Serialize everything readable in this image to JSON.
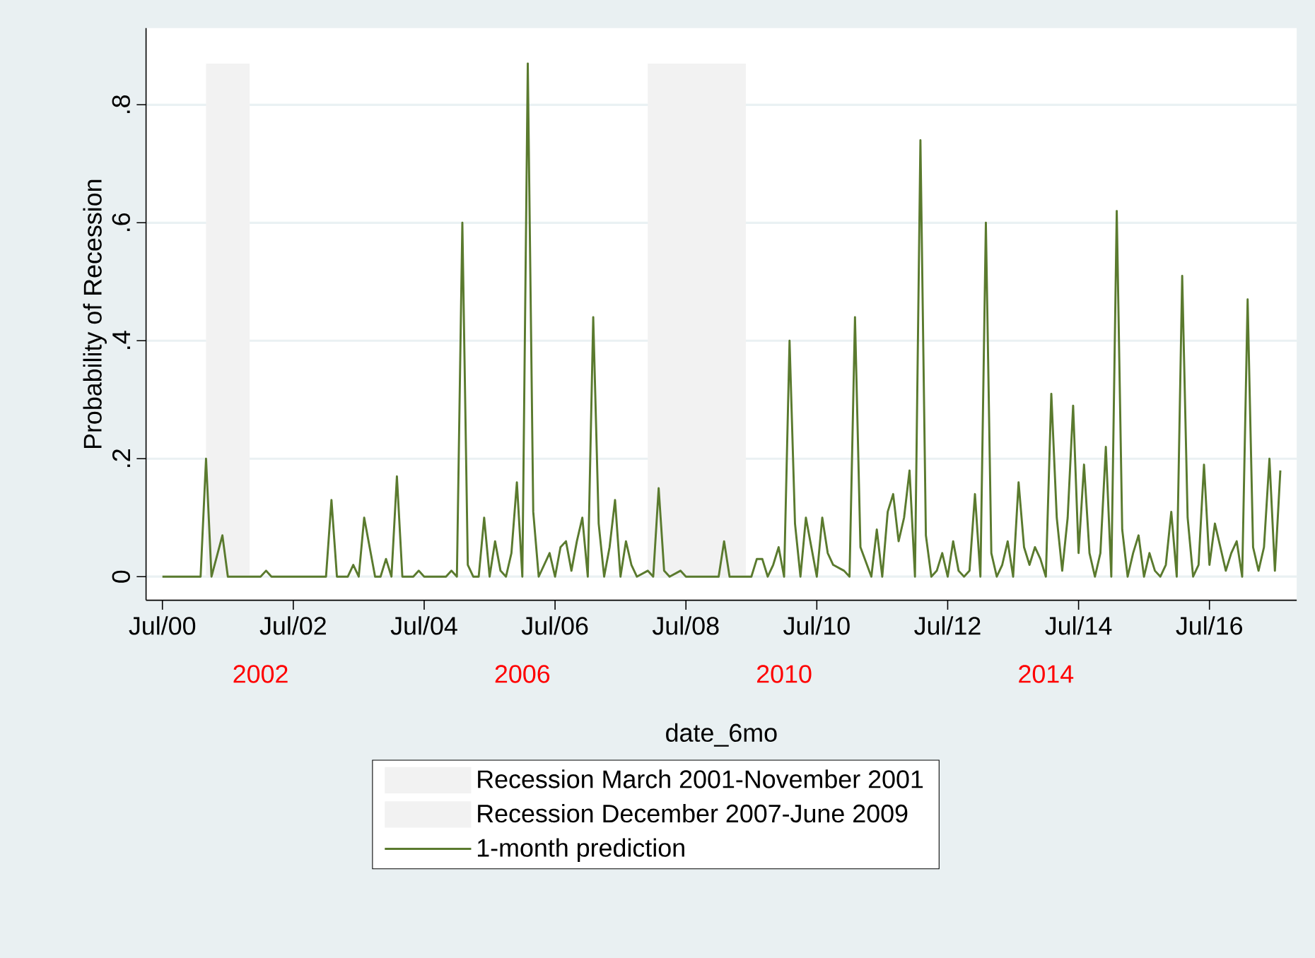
{
  "chart_data": {
    "type": "line",
    "xlabel": "date_6mo",
    "ylabel": "Probability of Recession",
    "x": [
      "2000-07",
      "2001-02",
      "2001-03",
      "2001-04",
      "2001-06",
      "2001-07",
      "2001-09",
      "2002-01",
      "2002-02",
      "2002-03",
      "2003-01",
      "2003-02",
      "2003-03",
      "2003-05",
      "2003-06",
      "2003-07",
      "2003-08",
      "2003-10",
      "2003-11",
      "2003-12",
      "2004-01",
      "2004-02",
      "2004-03",
      "2004-05",
      "2004-06",
      "2004-07",
      "2004-11",
      "2004-12",
      "2005-01",
      "2005-02",
      "2005-03",
      "2005-04",
      "2005-05",
      "2005-06",
      "2005-07",
      "2005-08",
      "2005-09",
      "2005-10",
      "2005-11",
      "2005-12",
      "2006-01",
      "2006-02",
      "2006-03",
      "2006-04",
      "2006-06",
      "2006-07",
      "2006-08",
      "2006-09",
      "2006-10",
      "2006-11",
      "2006-12",
      "2007-01",
      "2007-02",
      "2007-03",
      "2007-04",
      "2007-05",
      "2007-06",
      "2007-07",
      "2007-08",
      "2007-09",
      "2007-10",
      "2007-12",
      "2008-01",
      "2008-02",
      "2008-03",
      "2008-04",
      "2008-06",
      "2008-07",
      "2009-01",
      "2009-02",
      "2009-03",
      "2009-07",
      "2009-08",
      "2009-09",
      "2009-10",
      "2009-11",
      "2009-12",
      "2010-01",
      "2010-02",
      "2010-03",
      "2010-04",
      "2010-05",
      "2010-06",
      "2010-07",
      "2010-08",
      "2010-09",
      "2010-10",
      "2010-12",
      "2011-01",
      "2011-02",
      "2011-03",
      "2011-05",
      "2011-06",
      "2011-07",
      "2011-08",
      "2011-09",
      "2011-10",
      "2011-11",
      "2011-12",
      "2012-01",
      "2012-02",
      "2012-03",
      "2012-04",
      "2012-05",
      "2012-06",
      "2012-07",
      "2012-08",
      "2012-09",
      "2012-10",
      "2012-11",
      "2012-12",
      "2013-01",
      "2013-02",
      "2013-03",
      "2013-04",
      "2013-05",
      "2013-06",
      "2013-07",
      "2013-08",
      "2013-09",
      "2013-10",
      "2013-11",
      "2013-12",
      "2014-01",
      "2014-02",
      "2014-03",
      "2014-04",
      "2014-05",
      "2014-06",
      "2014-07",
      "2014-08",
      "2014-09",
      "2014-10",
      "2014-11",
      "2014-12",
      "2015-01",
      "2015-02",
      "2015-03",
      "2015-04",
      "2015-05",
      "2015-06",
      "2015-07",
      "2015-08",
      "2015-09",
      "2015-10",
      "2015-11",
      "2015-12",
      "2016-01",
      "2016-02",
      "2016-03",
      "2016-04",
      "2016-05",
      "2016-06",
      "2016-07",
      "2016-08",
      "2016-09",
      "2016-10",
      "2016-11",
      "2016-12",
      "2017-01",
      "2017-02",
      "2017-03",
      "2017-04",
      "2017-05",
      "2017-06",
      "2017-07",
      "2017-08"
    ],
    "series": [
      {
        "name": "1-month prediction",
        "color": "#5a7a2e",
        "values": [
          0,
          0,
          0.2,
          0,
          0.07,
          0,
          0,
          0,
          0.01,
          0,
          0,
          0.13,
          0,
          0,
          0.02,
          0,
          0.1,
          0,
          0,
          0.03,
          0,
          0.17,
          0,
          0,
          0.01,
          0,
          0,
          0.01,
          0,
          0.6,
          0.02,
          0,
          0,
          0.1,
          0,
          0.06,
          0.01,
          0,
          0.04,
          0.16,
          0,
          0.87,
          0.11,
          0,
          0.04,
          0,
          0.05,
          0.06,
          0.01,
          0.06,
          0.1,
          0,
          0.44,
          0.09,
          0,
          0.05,
          0.13,
          0,
          0.06,
          0.02,
          0,
          0.01,
          0,
          0.15,
          0.01,
          0,
          0.01,
          0,
          0,
          0.06,
          0,
          0,
          0.03,
          0.03,
          0,
          0.02,
          0.05,
          0,
          0.4,
          0.09,
          0,
          0.1,
          0.05,
          0,
          0.1,
          0.04,
          0.02,
          0.01,
          0,
          0.44,
          0.05,
          0,
          0.08,
          0,
          0.11,
          0.14,
          0.06,
          0.1,
          0.18,
          0,
          0.74,
          0.07,
          0,
          0.01,
          0.04,
          0,
          0.06,
          0.01,
          0,
          0.01,
          0.14,
          0,
          0.6,
          0.04,
          0,
          0.02,
          0.06,
          0,
          0.16,
          0.05,
          0.02,
          0.05,
          0.03,
          0,
          0.31,
          0.1,
          0.01,
          0.1,
          0.29,
          0.04,
          0.19,
          0.04,
          0,
          0.04,
          0.22,
          0,
          0.62,
          0.08,
          0,
          0.04,
          0.07,
          0,
          0.04,
          0.01,
          0,
          0.02,
          0.11,
          0,
          0.51,
          0.1,
          0,
          0.02,
          0.19,
          0.02,
          0.09,
          0.05,
          0.01,
          0.04,
          0.06,
          0,
          0.47,
          0.05,
          0.01,
          0.05,
          0.2,
          0.01,
          0.18
        ]
      }
    ],
    "bands": [
      {
        "axis": "x",
        "from": "2001-03",
        "to": "2001-11",
        "label": "Recession March 2001-November 2001",
        "color": "#f2f2f2"
      },
      {
        "axis": "x",
        "from": "2007-12",
        "to": "2009-06",
        "label": "Recession December 2007-June 2009",
        "color": "#f2f2f2"
      }
    ],
    "x2lim": [
      "2000-04",
      "2017-11"
    ],
    "x2ticks": [
      {
        "value": "2002-01",
        "label": "2002"
      },
      {
        "value": "2006-01",
        "label": "2006"
      },
      {
        "value": "2010-01",
        "label": "2010"
      },
      {
        "value": "2014-01",
        "label": "2014"
      }
    ],
    "xlim": [
      "2000-04",
      "2017-11"
    ],
    "xticks": [
      {
        "value": "2000-07",
        "label": "Jul/00"
      },
      {
        "value": "2002-07",
        "label": "Jul/02"
      },
      {
        "value": "2004-07",
        "label": "Jul/04"
      },
      {
        "value": "2006-07",
        "label": "Jul/06"
      },
      {
        "value": "2008-07",
        "label": "Jul/08"
      },
      {
        "value": "2010-07",
        "label": "Jul/10"
      },
      {
        "value": "2012-07",
        "label": "Jul/12"
      },
      {
        "value": "2014-07",
        "label": "Jul/14"
      },
      {
        "value": "2016-07",
        "label": "Jul/16"
      }
    ],
    "ylim": [
      -0.04,
      0.93
    ],
    "yticks": [
      0,
      {
        "value": 0.2,
        "label": ".2"
      },
      {
        "value": 0.4,
        "label": ".4"
      },
      {
        "value": 0.6,
        "label": ".6"
      },
      {
        "value": 0.8,
        "label": ".8"
      }
    ],
    "grid": "y",
    "legend": "bottom",
    "marker": "none",
    "line_style": "solid"
  }
}
